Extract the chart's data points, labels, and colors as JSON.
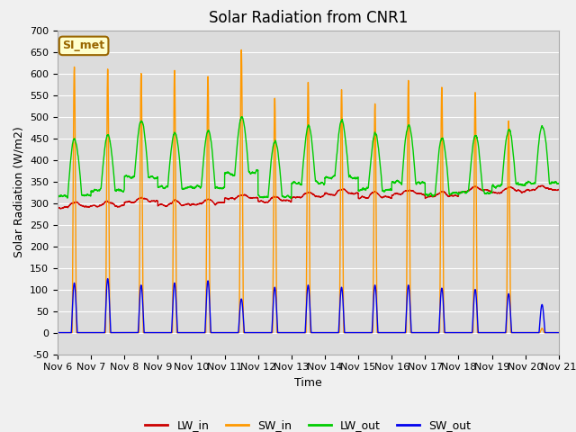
{
  "title": "Solar Radiation from CNR1",
  "xlabel": "Time",
  "ylabel": "Solar Radiation (W/m2)",
  "ylim": [
    -50,
    700
  ],
  "fig_bg_color": "#f0f0f0",
  "plot_bg_color": "#dcdcdc",
  "colors": {
    "LW_in": "#cc0000",
    "SW_in": "#ff9900",
    "LW_out": "#00cc00",
    "SW_out": "#0000ee"
  },
  "annotation_text": "SI_met",
  "annotation_bg": "#ffffcc",
  "annotation_border": "#996600",
  "n_days": 15,
  "start_day": 6,
  "sw_peak_vals": [
    615,
    610,
    600,
    607,
    593,
    655,
    543,
    580,
    563,
    530,
    584,
    568,
    556,
    490,
    10
  ],
  "sw_out_peak_vals": [
    115,
    125,
    110,
    115,
    120,
    78,
    105,
    110,
    105,
    110,
    110,
    103,
    100,
    90,
    65
  ],
  "title_fontsize": 12,
  "label_fontsize": 9,
  "tick_fontsize": 8,
  "legend_fontsize": 9,
  "linewidth": 1.0
}
